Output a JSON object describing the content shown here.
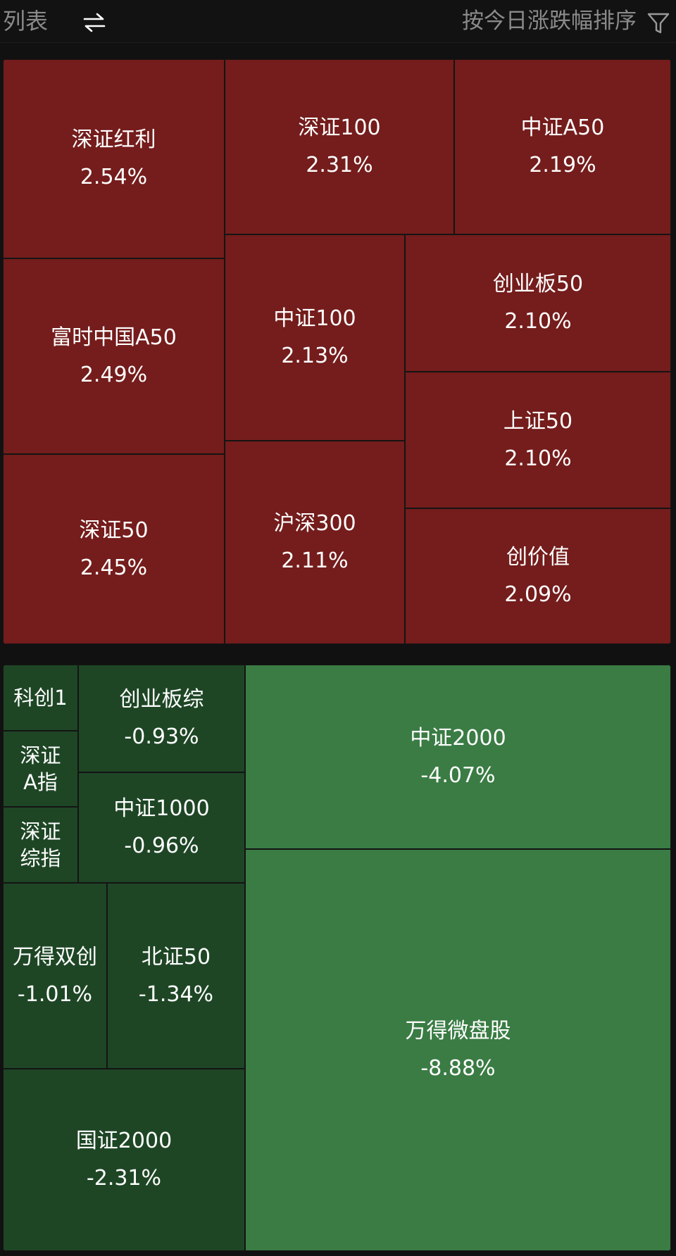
{
  "header": {
    "list_label": "列表",
    "sort_label": "按今日涨跌幅排序",
    "swap_icon": "swap-arrows-icon",
    "filter_icon": "filter-funnel-icon"
  },
  "colors": {
    "up": "#741d1c",
    "down_weak": "#1e4625",
    "down_strong": "#3a7c44",
    "background": "#111111"
  },
  "gainers": [
    {
      "name": "深证红利",
      "pct": "2.54%"
    },
    {
      "name": "深证100",
      "pct": "2.31%"
    },
    {
      "name": "中证A50",
      "pct": "2.19%"
    },
    {
      "name": "富时中国A50",
      "pct": "2.49%"
    },
    {
      "name": "中证100",
      "pct": "2.13%"
    },
    {
      "name": "创业板50",
      "pct": "2.10%"
    },
    {
      "name": "上证50",
      "pct": "2.10%"
    },
    {
      "name": "深证50",
      "pct": "2.45%"
    },
    {
      "name": "沪深300",
      "pct": "2.11%"
    },
    {
      "name": "创价值",
      "pct": "2.09%"
    }
  ],
  "losers": [
    {
      "name": "科创1"
    },
    {
      "name": "深证A指"
    },
    {
      "name": "深证综指"
    },
    {
      "name": "创业板综",
      "pct": "-0.93%"
    },
    {
      "name": "中证1000",
      "pct": "-0.96%"
    },
    {
      "name": "万得双创",
      "pct": "-1.01%"
    },
    {
      "name": "北证50",
      "pct": "-1.34%"
    },
    {
      "name": "国证2000",
      "pct": "-2.31%"
    },
    {
      "name": "中证2000",
      "pct": "-4.07%"
    },
    {
      "name": "万得微盘股",
      "pct": "-8.88%"
    }
  ]
}
